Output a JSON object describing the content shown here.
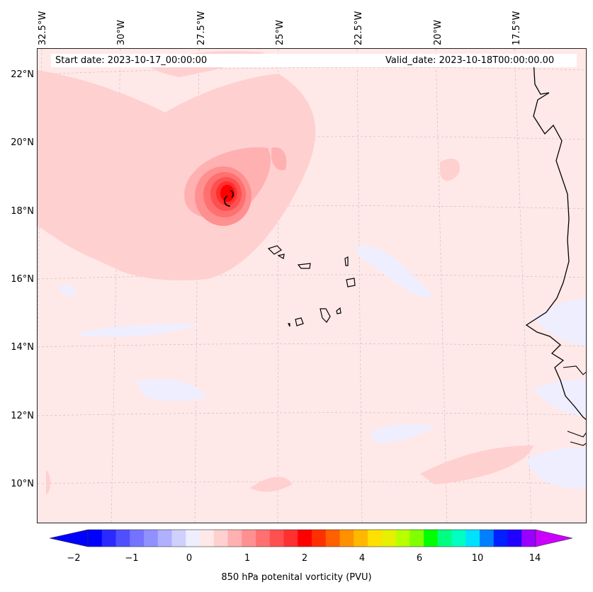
{
  "map": {
    "longitude_labels": [
      "32.5°W",
      "30°W",
      "27.5°W",
      "25°W",
      "22.5°W",
      "20°W",
      "17.5°W"
    ],
    "latitude_labels": [
      "22°N",
      "20°N",
      "18°N",
      "16°N",
      "14°N",
      "12°N",
      "10°N"
    ],
    "start_date": "Start date: 2023-10-17_00:00:00",
    "valid_date": "Valid_date: 2023-10-18T00:00:00.00",
    "vortex_center_lon": -26.1,
    "vortex_center_lat": 18.3,
    "colors": {
      "background_field": "#ffe8e8",
      "light_pink": "#ffd0d0",
      "pink": "#ffb0b0",
      "red_core": "#ff0000",
      "blue_patch": "#eeeeff",
      "coastline": "#000000"
    }
  },
  "colorbar": {
    "label": "850 hPa potenital vorticity (PVU)",
    "tick_labels": [
      "−2",
      "−1",
      "0",
      "1",
      "2",
      "4",
      "6",
      "10",
      "14"
    ],
    "colors": [
      "#0000ff",
      "#2a2aff",
      "#4f4fff",
      "#7373ff",
      "#9090ff",
      "#b0b0ff",
      "#d0d0ff",
      "#eeeeff",
      "#ffe8e8",
      "#ffd0d0",
      "#ffb0b0",
      "#ff9090",
      "#ff7070",
      "#ff5050",
      "#ff3030",
      "#ff0000",
      "#ff3000",
      "#ff6000",
      "#ff9000",
      "#ffb800",
      "#ffe000",
      "#e6f000",
      "#b8ff00",
      "#80ff00",
      "#00ff00",
      "#00ff80",
      "#00ffc0",
      "#00e0ff",
      "#0080ff",
      "#0020ff",
      "#2000ff",
      "#9900ff"
    ],
    "extend_min_color": "#0000ff",
    "extend_max_color": "#cc00ff"
  }
}
